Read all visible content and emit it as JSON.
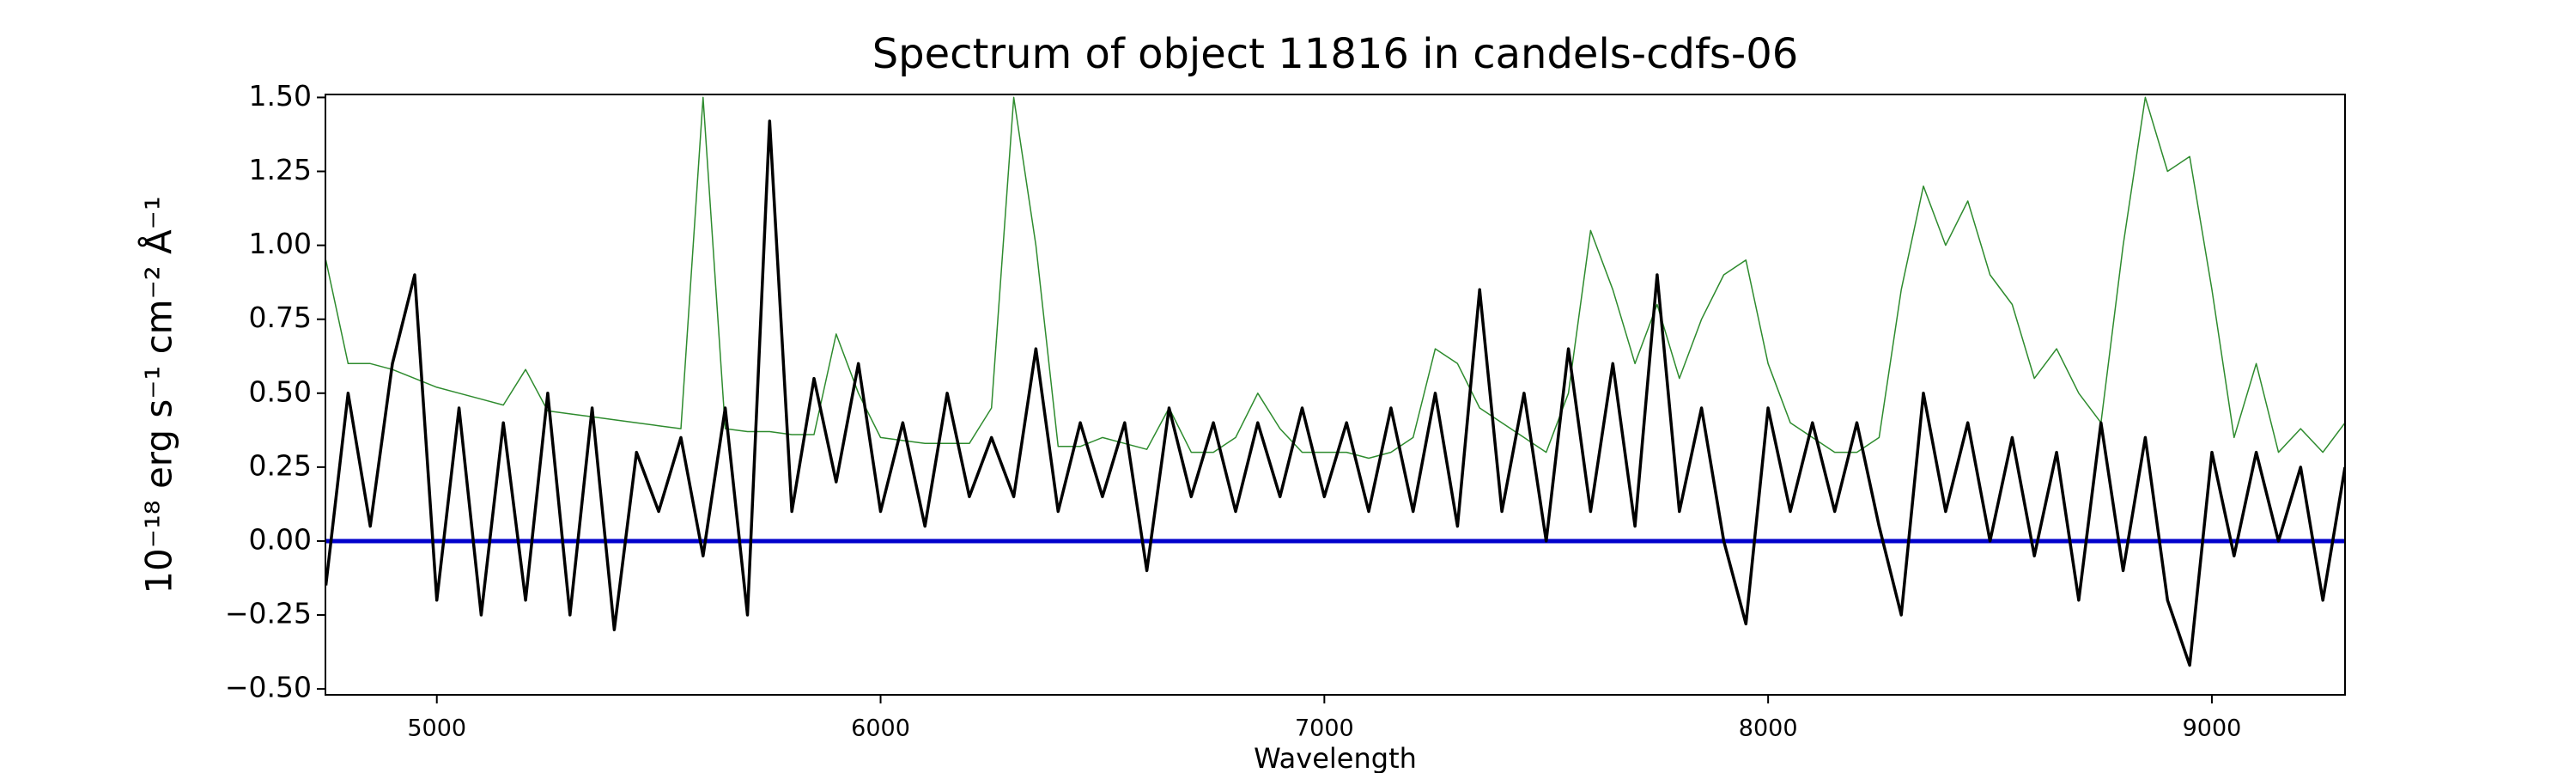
{
  "chart_data": {
    "type": "line",
    "title": "Spectrum of object 11816 in candels-cdfs-06",
    "xlabel": "Wavelength",
    "ylabel": "10⁻¹⁸ erg s⁻¹ cm⁻² Å⁻¹",
    "xlim": [
      4749,
      9300
    ],
    "ylim": [
      -0.52,
      1.51
    ],
    "xticks": [
      5000,
      6000,
      7000,
      8000,
      9000
    ],
    "yticks": [
      {
        "value": -0.5,
        "label": "−0.50"
      },
      {
        "value": -0.25,
        "label": "−0.25"
      },
      {
        "value": 0,
        "label": "0.00"
      },
      {
        "value": 0.25,
        "label": "0.25"
      },
      {
        "value": 0.5,
        "label": "0.50"
      },
      {
        "value": 0.75,
        "label": "0.75"
      },
      {
        "value": 1,
        "label": "1.00"
      },
      {
        "value": 1.25,
        "label": "1.25"
      },
      {
        "value": 1.5,
        "label": "1.50"
      }
    ],
    "x": [
      4750,
      4800,
      4850,
      4900,
      4950,
      5000,
      5050,
      5100,
      5150,
      5200,
      5250,
      5300,
      5350,
      5400,
      5450,
      5500,
      5550,
      5600,
      5650,
      5700,
      5750,
      5800,
      5850,
      5900,
      5950,
      6000,
      6050,
      6100,
      6150,
      6200,
      6250,
      6300,
      6350,
      6400,
      6450,
      6500,
      6550,
      6600,
      6650,
      6700,
      6750,
      6800,
      6850,
      6900,
      6950,
      7000,
      7050,
      7100,
      7150,
      7200,
      7250,
      7300,
      7350,
      7400,
      7450,
      7500,
      7550,
      7600,
      7650,
      7700,
      7750,
      7800,
      7850,
      7900,
      7950,
      8000,
      8050,
      8100,
      8150,
      8200,
      8250,
      8300,
      8350,
      8400,
      8450,
      8500,
      8550,
      8600,
      8650,
      8700,
      8750,
      8800,
      8850,
      8900,
      8950,
      9000,
      9050,
      9100,
      9150,
      9200,
      9250,
      9300
    ],
    "series": [
      {
        "color": "#2e8b2e",
        "width": 1.5,
        "values": [
          0.95,
          0.6,
          0.6,
          0.58,
          0.55,
          0.52,
          0.5,
          0.48,
          0.46,
          0.58,
          0.44,
          0.43,
          0.42,
          0.41,
          0.4,
          0.39,
          0.38,
          1.5,
          0.38,
          0.37,
          0.37,
          0.36,
          0.36,
          0.7,
          0.5,
          0.35,
          0.34,
          0.33,
          0.33,
          0.33,
          0.45,
          1.5,
          1.0,
          0.32,
          0.32,
          0.35,
          0.33,
          0.31,
          0.45,
          0.3,
          0.3,
          0.35,
          0.5,
          0.38,
          0.3,
          0.3,
          0.3,
          0.28,
          0.3,
          0.35,
          0.65,
          0.6,
          0.45,
          0.4,
          0.35,
          0.3,
          0.5,
          1.05,
          0.85,
          0.6,
          0.8,
          0.55,
          0.75,
          0.9,
          0.95,
          0.6,
          0.4,
          0.35,
          0.3,
          0.3,
          0.35,
          0.85,
          1.2,
          1.0,
          1.15,
          0.9,
          0.8,
          0.55,
          0.65,
          0.5,
          0.4,
          1.0,
          1.5,
          1.25,
          1.3,
          0.85,
          0.35,
          0.6,
          0.3,
          0.38,
          0.3,
          0.4
        ]
      },
      {
        "color": "#000000",
        "width": 3.5,
        "values": [
          -0.15,
          0.5,
          0.05,
          0.6,
          0.9,
          -0.2,
          0.45,
          -0.25,
          0.4,
          -0.2,
          0.5,
          -0.25,
          0.45,
          -0.3,
          0.3,
          0.1,
          0.35,
          -0.05,
          0.45,
          -0.25,
          1.42,
          0.1,
          0.55,
          0.2,
          0.6,
          0.1,
          0.4,
          0.05,
          0.5,
          0.15,
          0.35,
          0.15,
          0.65,
          0.1,
          0.4,
          0.15,
          0.4,
          -0.1,
          0.45,
          0.15,
          0.4,
          0.1,
          0.4,
          0.15,
          0.45,
          0.15,
          0.4,
          0.1,
          0.45,
          0.1,
          0.5,
          0.05,
          0.85,
          0.1,
          0.5,
          0.0,
          0.65,
          0.1,
          0.6,
          0.05,
          0.9,
          0.1,
          0.45,
          0.0,
          -0.28,
          0.45,
          0.1,
          0.4,
          0.1,
          0.4,
          0.05,
          -0.25,
          0.5,
          0.1,
          0.4,
          0.0,
          0.35,
          -0.05,
          0.3,
          -0.2,
          0.4,
          -0.1,
          0.35,
          -0.2,
          -0.42,
          0.3,
          -0.05,
          0.3,
          0.0,
          0.25,
          -0.2,
          0.25
        ]
      }
    ],
    "zero_line": {
      "value": 0,
      "color": "#0000cc"
    }
  }
}
